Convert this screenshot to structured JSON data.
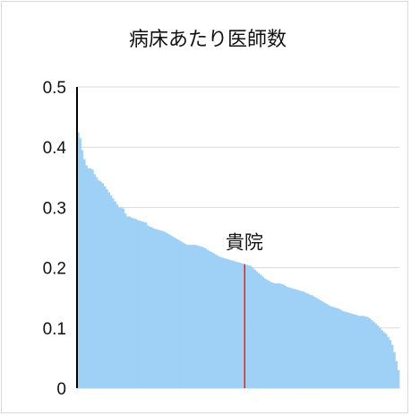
{
  "chart_data": {
    "type": "bar",
    "title": "病床あたり医師数",
    "xlabel": "",
    "ylabel": "",
    "ylim": [
      0,
      0.5
    ],
    "yticks": [
      {
        "value": 0,
        "label": "0"
      },
      {
        "value": 0.1,
        "label": "0.1"
      },
      {
        "value": 0.2,
        "label": "0.2"
      },
      {
        "value": 0.3,
        "label": "0.3"
      },
      {
        "value": 0.4,
        "label": "0.4"
      },
      {
        "value": 0.5,
        "label": "0.5"
      }
    ],
    "grid": true,
    "bar_color": "#9fd0f5",
    "highlight_color": "#e4181a",
    "highlight_index": 81,
    "highlight_label": "貴院",
    "values": [
      0.425,
      0.415,
      0.395,
      0.38,
      0.37,
      0.365,
      0.365,
      0.363,
      0.355,
      0.35,
      0.345,
      0.343,
      0.34,
      0.335,
      0.33,
      0.325,
      0.32,
      0.315,
      0.31,
      0.305,
      0.3,
      0.3,
      0.298,
      0.29,
      0.285,
      0.285,
      0.283,
      0.282,
      0.281,
      0.279,
      0.278,
      0.277,
      0.276,
      0.275,
      0.27,
      0.268,
      0.267,
      0.265,
      0.264,
      0.263,
      0.262,
      0.261,
      0.26,
      0.258,
      0.256,
      0.254,
      0.252,
      0.25,
      0.248,
      0.246,
      0.244,
      0.242,
      0.24,
      0.238,
      0.238,
      0.238,
      0.238,
      0.238,
      0.237,
      0.236,
      0.235,
      0.234,
      0.232,
      0.23,
      0.228,
      0.226,
      0.224,
      0.222,
      0.22,
      0.218,
      0.217,
      0.216,
      0.215,
      0.214,
      0.213,
      0.212,
      0.211,
      0.21,
      0.209,
      0.208,
      0.207,
      0.206,
      0.205,
      0.204,
      0.203,
      0.2,
      0.197,
      0.194,
      0.191,
      0.188,
      0.185,
      0.182,
      0.18,
      0.178,
      0.176,
      0.175,
      0.174,
      0.174,
      0.174,
      0.173,
      0.172,
      0.17,
      0.168,
      0.167,
      0.166,
      0.165,
      0.164,
      0.163,
      0.162,
      0.161,
      0.16,
      0.158,
      0.157,
      0.155,
      0.154,
      0.152,
      0.15,
      0.148,
      0.146,
      0.144,
      0.142,
      0.14,
      0.138,
      0.136,
      0.135,
      0.134,
      0.133,
      0.132,
      0.13,
      0.128,
      0.127,
      0.126,
      0.125,
      0.124,
      0.123,
      0.122,
      0.121,
      0.12,
      0.12,
      0.12,
      0.119,
      0.118,
      0.116,
      0.113,
      0.11,
      0.107,
      0.104,
      0.1,
      0.096,
      0.093,
      0.09,
      0.085,
      0.08,
      0.072,
      0.06,
      0.045,
      0.03
    ]
  }
}
